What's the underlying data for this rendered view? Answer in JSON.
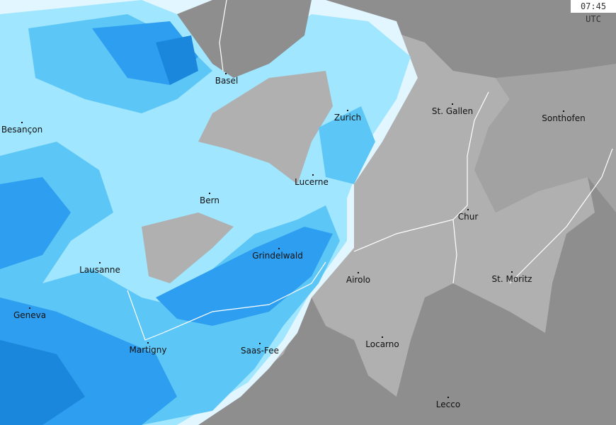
{
  "timestamp": "07:45 UTC",
  "map": {
    "colors": {
      "outside_land": "#8e8e8e",
      "switzerland": "#b0b0b0",
      "precip_very_light": "#e2f6ff",
      "precip_light": "#a0e6ff",
      "precip_moderate": "#5cc6f6",
      "precip_heavy": "#2e9ef0",
      "precip_very_heavy": "#1a86dc",
      "rivers": "#ffffff"
    },
    "cities": [
      {
        "name": "Basel"
      },
      {
        "name": "Besançon"
      },
      {
        "name": "Zurich"
      },
      {
        "name": "St. Gallen"
      },
      {
        "name": "Sonthofen"
      },
      {
        "name": "Lucerne"
      },
      {
        "name": "Bern"
      },
      {
        "name": "Chur"
      },
      {
        "name": "Grindelwald"
      },
      {
        "name": "Lausanne"
      },
      {
        "name": "Airolo"
      },
      {
        "name": "St. Moritz"
      },
      {
        "name": "Geneva"
      },
      {
        "name": "Martigny"
      },
      {
        "name": "Saas-Fee"
      },
      {
        "name": "Locarno"
      },
      {
        "name": "Lecco"
      }
    ]
  }
}
